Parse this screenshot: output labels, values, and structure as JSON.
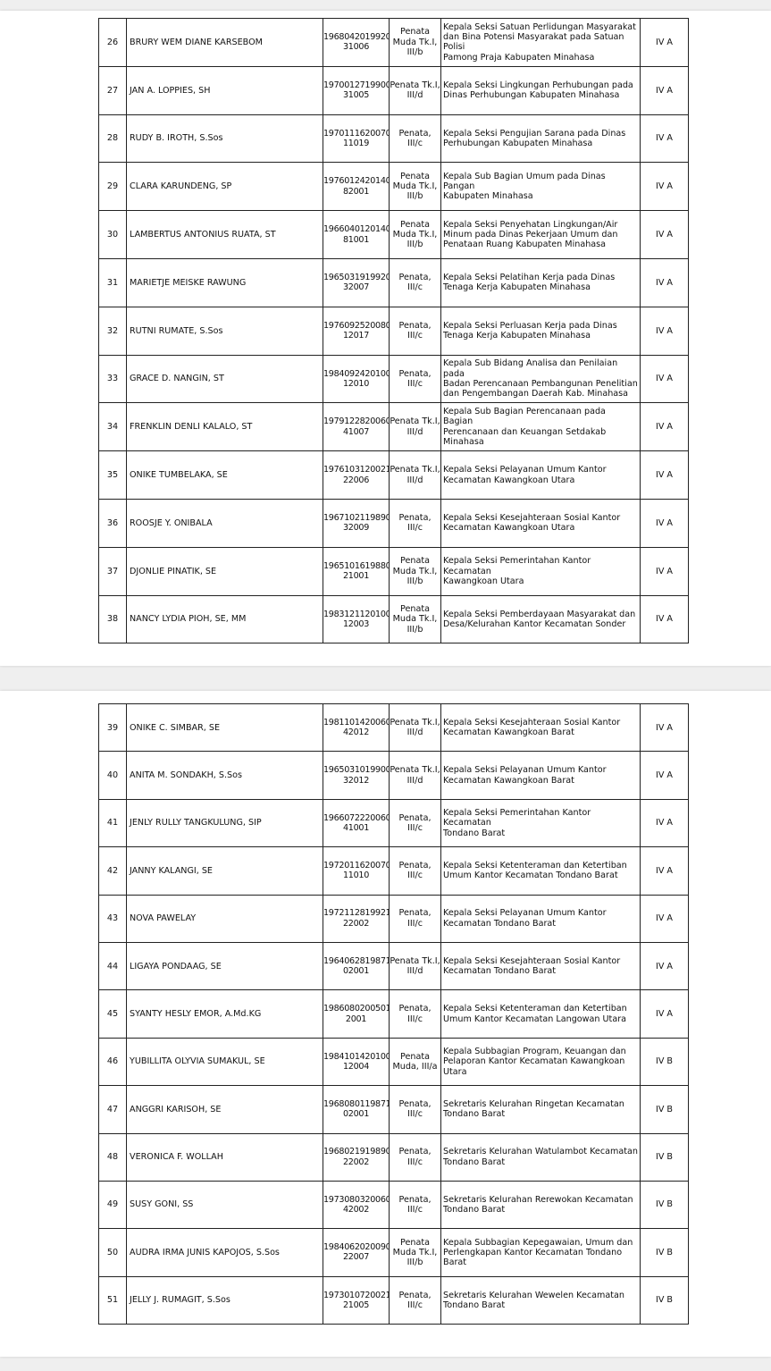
{
  "pages": [
    {
      "rows": [
        {
          "no": "26",
          "name": "BRURY WEM DIANE KARSEBOM",
          "nip": "1968042019920\n31006",
          "rank": "Penata\nMuda Tk.I,\nIII/b",
          "position": "Kepala Seksi Satuan Perlidungan Masyarakat\ndan Bina Potensi Masyarakat pada Satuan Polisi\nPamong Praja Kabupaten Minahasa",
          "eselon": "IV A"
        },
        {
          "no": "27",
          "name": "JAN A. LOPPIES, SH",
          "nip": "1970012719900\n31005",
          "rank": "Penata Tk.I,\nIII/d",
          "position": "Kepala Seksi Lingkungan Perhubungan pada\nDinas Perhubungan Kabupaten Minahasa",
          "eselon": "IV A"
        },
        {
          "no": "28",
          "name": "RUDY B. IROTH, S.Sos",
          "nip": "1970111620070\n11019",
          "rank": "Penata,\nIII/c",
          "position": "Kepala Seksi Pengujian Sarana pada Dinas\nPerhubungan Kabupaten Minahasa",
          "eselon": "IV A"
        },
        {
          "no": "29",
          "name": "CLARA KARUNDENG, SP",
          "nip": "1976012420140\n82001",
          "rank": "Penata\nMuda Tk.I,\nIII/b",
          "position": "Kepala Sub Bagian Umum pada Dinas Pangan\nKabupaten Minahasa",
          "eselon": "IV A"
        },
        {
          "no": "30",
          "name": "LAMBERTUS ANTONIUS RUATA, ST",
          "nip": "1966040120140\n81001",
          "rank": "Penata\nMuda Tk.I,\nIII/b",
          "position": "Kepala Seksi Penyehatan Lingkungan/Air\nMinum pada Dinas Pekerjaan Umum dan\nPenataan Ruang Kabupaten Minahasa",
          "eselon": "IV A"
        },
        {
          "no": "31",
          "name": "MARIETJE MEISKE RAWUNG",
          "nip": "1965031919920\n32007",
          "rank": "Penata,\nIII/c",
          "position": "Kepala Seksi Pelatihan Kerja pada Dinas\nTenaga Kerja Kabupaten Minahasa",
          "eselon": "IV A"
        },
        {
          "no": "32",
          "name": "RUTNI RUMATE, S.Sos",
          "nip": "1976092520080\n12017",
          "rank": "Penata,\nIII/c",
          "position": "Kepala Seksi Perluasan Kerja pada Dinas\nTenaga Kerja Kabupaten Minahasa",
          "eselon": "IV A"
        },
        {
          "no": "33",
          "name": "GRACE D. NANGIN, ST",
          "nip": "1984092420100\n12010",
          "rank": "Penata,\nIII/c",
          "position": "Kepala Sub Bidang Analisa dan Penilaian pada\nBadan Perencanaan Pembangunan Penelitian\ndan Pengembangan Daerah Kab. Minahasa",
          "eselon": "IV A"
        },
        {
          "no": "34",
          "name": "FRENKLIN DENLI KALALO, ST",
          "nip": "1979122820060\n41007",
          "rank": "Penata Tk.I,\nIII/d",
          "position": "Kepala Sub Bagian Perencanaan pada Bagian\nPerencanaan dan Keuangan Setdakab\nMinahasa",
          "eselon": "IV A"
        },
        {
          "no": "35",
          "name": "ONIKE TUMBELAKA, SE",
          "nip": "1976103120021\n22006",
          "rank": "Penata Tk.I,\nIII/d",
          "position": "Kepala Seksi Pelayanan Umum Kantor\nKecamatan Kawangkoan Utara",
          "eselon": "IV A"
        },
        {
          "no": "36",
          "name": "ROOSJE Y. ONIBALA",
          "nip": "1967102119890\n32009",
          "rank": "Penata,\nIII/c",
          "position": "Kepala Seksi Kesejahteraan Sosial Kantor\nKecamatan Kawangkoan Utara",
          "eselon": "IV A"
        },
        {
          "no": "37",
          "name": "DJONLIE PINATIK, SE",
          "nip": "1965101619880\n21001",
          "rank": "Penata\nMuda Tk.I,\nIII/b",
          "position": "Kepala Seksi Pemerintahan Kantor Kecamatan\nKawangkoan Utara",
          "eselon": "IV A"
        },
        {
          "no": "38",
          "name": "NANCY LYDIA PIOH, SE, MM",
          "nip": "1983121120100\n12003",
          "rank": "Penata\nMuda Tk.I,\nIII/b",
          "position": "Kepala Seksi Pemberdayaan Masyarakat dan\nDesa/Kelurahan Kantor Kecamatan Sonder",
          "eselon": "IV A"
        }
      ]
    },
    {
      "rows": [
        {
          "no": "39",
          "name": "ONIKE C. SIMBAR, SE",
          "nip": "1981101420060\n42012",
          "rank": "Penata Tk.I,\nIII/d",
          "position": "Kepala Seksi Kesejahteraan Sosial Kantor\nKecamatan Kawangkoan Barat",
          "eselon": "IV A"
        },
        {
          "no": "40",
          "name": "ANITA M. SONDAKH, S.Sos",
          "nip": "1965031019900\n32012",
          "rank": "Penata Tk.I,\nIII/d",
          "position": "Kepala Seksi Pelayanan Umum Kantor\nKecamatan Kawangkoan Barat",
          "eselon": "IV A"
        },
        {
          "no": "41",
          "name": "JENLY RULLY TANGKULUNG, SIP",
          "nip": "1966072220060\n41001",
          "rank": "Penata,\nIII/c",
          "position": "Kepala Seksi Pemerintahan Kantor Kecamatan\nTondano Barat",
          "eselon": "IV A"
        },
        {
          "no": "42",
          "name": "JANNY KALANGI, SE",
          "nip": "1972011620070\n11010",
          "rank": "Penata,\nIII/c",
          "position": "Kepala Seksi Ketenteraman dan Ketertiban\nUmum Kantor Kecamatan Tondano Barat",
          "eselon": "IV A"
        },
        {
          "no": "43",
          "name": "NOVA PAWELAY",
          "nip": "1972112819921\n22002",
          "rank": "Penata,\nIII/c",
          "position": "Kepala Seksi Pelayanan Umum Kantor\nKecamatan Tondano Barat",
          "eselon": "IV A"
        },
        {
          "no": "44",
          "name": "LIGAYA PONDAAG, SE",
          "nip": "1964062819871\n02001",
          "rank": "Penata Tk.I,\nIII/d",
          "position": "Kepala Seksi Kesejahteraan Sosial Kantor\nKecamatan Tondano Barat",
          "eselon": "IV A"
        },
        {
          "no": "45",
          "name": "SYANTY HESLY EMOR, A.Md.KG",
          "nip": "1986080200501\n2001",
          "rank": "Penata,\nIII/c",
          "position": "Kepala Seksi Ketenteraman dan Ketertiban\nUmum Kantor Kecamatan Langowan Utara",
          "eselon": "IV A"
        },
        {
          "no": "46",
          "name": "YUBILLITA OLYVIA SUMAKUL, SE",
          "nip": "1984101420100\n12004",
          "rank": "Penata\nMuda, III/a",
          "position": "Kepala Subbagian Program, Keuangan dan\nPelaporan  Kantor Kecamatan Kawangkoan\nUtara",
          "eselon": "IV B"
        },
        {
          "no": "47",
          "name": "ANGGRI KARISOH, SE",
          "nip": "1968080119871\n02001",
          "rank": "Penata,\nIII/c",
          "position": "Sekretaris Kelurahan Ringetan Kecamatan\nTondano Barat",
          "eselon": "IV B"
        },
        {
          "no": "48",
          "name": "VERONICA F. WOLLAH",
          "nip": "1968021919890\n22002",
          "rank": "Penata,\nIII/c",
          "position": "Sekretaris Kelurahan Watulambot Kecamatan\nTondano Barat",
          "eselon": "IV B"
        },
        {
          "no": "49",
          "name": "SUSY GONI, SS",
          "nip": "1973080320060\n42002",
          "rank": "Penata,\nIII/c",
          "position": "Sekretaris Kelurahan Rerewokan Kecamatan\nTondano Barat",
          "eselon": "IV B"
        },
        {
          "no": "50",
          "name": "AUDRA IRMA JUNIS KAPOJOS, S.Sos",
          "nip": "1984062020090\n22007",
          "rank": "Penata\nMuda Tk.I,\nIII/b",
          "position": "Kepala Subbagian Kepegawaian, Umum dan\nPerlengkapan Kantor Kecamatan Tondano\nBarat",
          "eselon": "IV B"
        },
        {
          "no": "51",
          "name": "JELLY J. RUMAGIT, S.Sos",
          "nip": "1973010720021\n21005",
          "rank": "Penata,\nIII/c",
          "position": "Sekretaris Kelurahan Wewelen Kecamatan\nTondano Barat",
          "eselon": "IV B"
        }
      ]
    }
  ]
}
